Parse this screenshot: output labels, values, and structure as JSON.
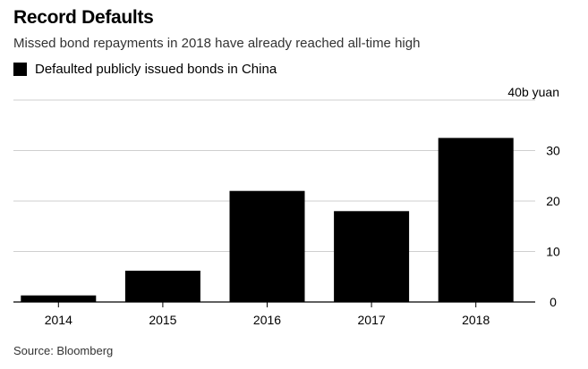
{
  "header": {
    "title": "Record Defaults",
    "subtitle": "Missed bond repayments in 2018 have already reached all-time high"
  },
  "legend": {
    "label": "Defaulted publicly issued bonds in China",
    "color": "#000000"
  },
  "source": "Source: Bloomberg",
  "chart_data": {
    "type": "bar",
    "title": "Record Defaults",
    "subtitle": "Missed bond repayments in 2018 have already reached all-time high",
    "categories": [
      "2014",
      "2015",
      "2016",
      "2017",
      "2018"
    ],
    "series": [
      {
        "name": "Defaulted publicly issued bonds in China",
        "values": [
          1.3,
          6.2,
          22,
          18,
          32.5
        ],
        "color": "#000000"
      }
    ],
    "ylim": [
      0,
      40
    ],
    "yticks": [
      0,
      10,
      20,
      30
    ],
    "ytick_labels": [
      "0",
      "10",
      "20",
      "30"
    ],
    "top_tick_label": "40b yuan",
    "yaxis_side": "right",
    "grid": true,
    "legend_position": "top-left"
  }
}
